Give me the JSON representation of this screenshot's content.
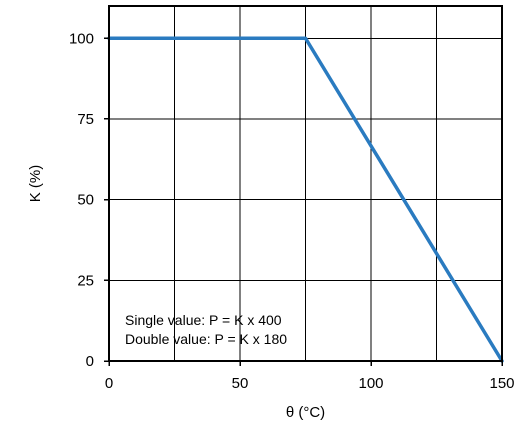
{
  "chart_data": {
    "type": "line",
    "xlabel": "θ (°C)",
    "ylabel": "K (%)",
    "xlim": [
      0,
      150
    ],
    "ylim": [
      0,
      110
    ],
    "x_ticks": [
      0,
      50,
      100,
      150
    ],
    "y_ticks": [
      0,
      25,
      50,
      75,
      100
    ],
    "x_grid": [
      0,
      25,
      50,
      75,
      100,
      125,
      150
    ],
    "y_grid": [
      0,
      25,
      50,
      75,
      100
    ],
    "grid": true,
    "series": [
      {
        "x": [
          0,
          75,
          150
        ],
        "y": [
          100,
          100,
          0
        ],
        "color": "#2a7bc0"
      }
    ],
    "annotations": [
      "Single value: P = K x 400",
      "Double value: P = K x 180"
    ]
  }
}
